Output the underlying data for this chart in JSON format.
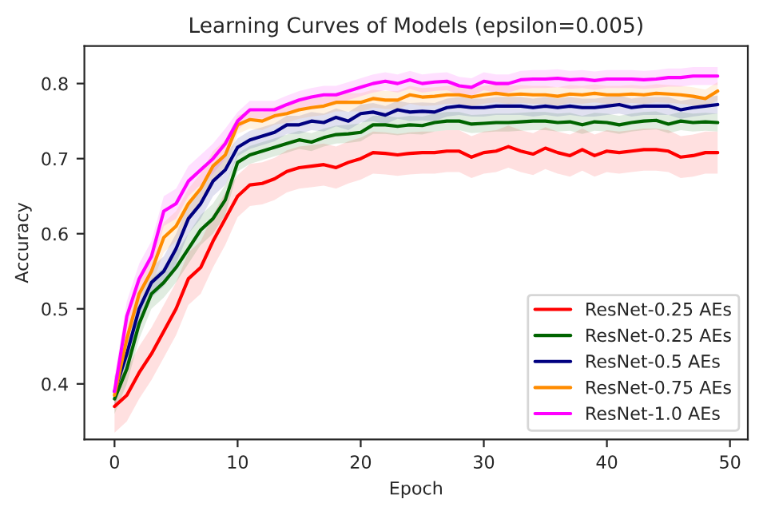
{
  "chart_data": {
    "type": "line",
    "title": "Learning Curves of Models (epsilon=0.005)",
    "xlabel": "Epoch",
    "ylabel": "Accuracy",
    "x": [
      0,
      1,
      2,
      3,
      4,
      5,
      6,
      7,
      8,
      9,
      10,
      11,
      12,
      13,
      14,
      15,
      16,
      17,
      18,
      19,
      20,
      21,
      22,
      23,
      24,
      25,
      26,
      27,
      28,
      29,
      30,
      31,
      32,
      33,
      34,
      35,
      36,
      37,
      38,
      39,
      40,
      41,
      42,
      43,
      44,
      45,
      46,
      47,
      48,
      49
    ],
    "xlim": [
      -2.45,
      51.45
    ],
    "xticks": [
      0,
      10,
      20,
      30,
      40,
      50
    ],
    "ylim": [
      0.326,
      0.85
    ],
    "yticks": [
      0.4,
      0.5,
      0.6,
      0.7,
      0.8
    ],
    "grid": false,
    "legend": "bottom right",
    "line_style": "solid",
    "marker": "none",
    "series": [
      {
        "name": "ResNet-0.25 AEs",
        "color": "#ff0000",
        "values": [
          0.37,
          0.385,
          0.415,
          0.44,
          0.47,
          0.5,
          0.54,
          0.555,
          0.59,
          0.62,
          0.65,
          0.665,
          0.667,
          0.673,
          0.683,
          0.688,
          0.69,
          0.692,
          0.688,
          0.695,
          0.7,
          0.708,
          0.707,
          0.705,
          0.707,
          0.708,
          0.708,
          0.71,
          0.71,
          0.702,
          0.708,
          0.71,
          0.716,
          0.71,
          0.706,
          0.714,
          0.708,
          0.704,
          0.712,
          0.704,
          0.71,
          0.708,
          0.71,
          0.712,
          0.712,
          0.71,
          0.702,
          0.704,
          0.708,
          0.708
        ],
        "lower": [
          0.335,
          0.35,
          0.38,
          0.405,
          0.435,
          0.465,
          0.505,
          0.52,
          0.555,
          0.585,
          0.622,
          0.637,
          0.639,
          0.645,
          0.655,
          0.66,
          0.662,
          0.664,
          0.66,
          0.667,
          0.672,
          0.68,
          0.679,
          0.677,
          0.679,
          0.68,
          0.68,
          0.682,
          0.682,
          0.674,
          0.68,
          0.682,
          0.688,
          0.682,
          0.678,
          0.686,
          0.68,
          0.676,
          0.684,
          0.676,
          0.682,
          0.68,
          0.682,
          0.684,
          0.684,
          0.682,
          0.674,
          0.676,
          0.68,
          0.68
        ],
        "upper": [
          0.405,
          0.42,
          0.45,
          0.475,
          0.505,
          0.535,
          0.575,
          0.59,
          0.625,
          0.655,
          0.678,
          0.693,
          0.695,
          0.701,
          0.711,
          0.716,
          0.718,
          0.72,
          0.716,
          0.723,
          0.728,
          0.736,
          0.735,
          0.733,
          0.735,
          0.736,
          0.736,
          0.738,
          0.738,
          0.73,
          0.736,
          0.738,
          0.744,
          0.738,
          0.734,
          0.742,
          0.736,
          0.732,
          0.74,
          0.732,
          0.738,
          0.736,
          0.738,
          0.74,
          0.74,
          0.738,
          0.73,
          0.732,
          0.736,
          0.736
        ]
      },
      {
        "name": "ResNet-0.25 AEs",
        "color": "#006400",
        "values": [
          0.38,
          0.42,
          0.48,
          0.52,
          0.535,
          0.555,
          0.58,
          0.605,
          0.62,
          0.645,
          0.695,
          0.705,
          0.71,
          0.715,
          0.72,
          0.725,
          0.722,
          0.728,
          0.732,
          0.733,
          0.735,
          0.745,
          0.745,
          0.743,
          0.745,
          0.744,
          0.748,
          0.75,
          0.75,
          0.746,
          0.747,
          0.748,
          0.748,
          0.749,
          0.75,
          0.75,
          0.748,
          0.749,
          0.745,
          0.749,
          0.748,
          0.745,
          0.748,
          0.75,
          0.751,
          0.746,
          0.75,
          0.748,
          0.749,
          0.748
        ],
        "lower": [
          0.36,
          0.4,
          0.46,
          0.5,
          0.515,
          0.535,
          0.56,
          0.585,
          0.6,
          0.625,
          0.683,
          0.693,
          0.698,
          0.703,
          0.708,
          0.713,
          0.71,
          0.716,
          0.72,
          0.721,
          0.723,
          0.733,
          0.733,
          0.731,
          0.733,
          0.732,
          0.736,
          0.738,
          0.738,
          0.734,
          0.735,
          0.736,
          0.736,
          0.737,
          0.738,
          0.738,
          0.736,
          0.737,
          0.733,
          0.737,
          0.736,
          0.733,
          0.736,
          0.738,
          0.739,
          0.734,
          0.738,
          0.736,
          0.737,
          0.736
        ],
        "upper": [
          0.4,
          0.44,
          0.5,
          0.54,
          0.555,
          0.575,
          0.6,
          0.625,
          0.64,
          0.665,
          0.707,
          0.717,
          0.722,
          0.727,
          0.732,
          0.737,
          0.734,
          0.74,
          0.744,
          0.745,
          0.747,
          0.757,
          0.757,
          0.755,
          0.757,
          0.756,
          0.76,
          0.762,
          0.762,
          0.758,
          0.759,
          0.76,
          0.76,
          0.761,
          0.762,
          0.762,
          0.76,
          0.761,
          0.757,
          0.761,
          0.76,
          0.757,
          0.76,
          0.762,
          0.763,
          0.758,
          0.762,
          0.76,
          0.761,
          0.76
        ]
      },
      {
        "name": "ResNet-0.5 AEs",
        "color": "#000080",
        "values": [
          0.39,
          0.44,
          0.5,
          0.535,
          0.55,
          0.58,
          0.62,
          0.64,
          0.67,
          0.685,
          0.715,
          0.725,
          0.73,
          0.735,
          0.745,
          0.745,
          0.75,
          0.748,
          0.755,
          0.75,
          0.76,
          0.762,
          0.758,
          0.765,
          0.762,
          0.763,
          0.762,
          0.768,
          0.77,
          0.768,
          0.768,
          0.77,
          0.77,
          0.77,
          0.768,
          0.77,
          0.768,
          0.77,
          0.768,
          0.768,
          0.77,
          0.772,
          0.768,
          0.77,
          0.77,
          0.77,
          0.765,
          0.768,
          0.77,
          0.772
        ],
        "lower": [
          0.37,
          0.42,
          0.48,
          0.515,
          0.53,
          0.56,
          0.6,
          0.62,
          0.65,
          0.665,
          0.703,
          0.713,
          0.718,
          0.723,
          0.733,
          0.733,
          0.738,
          0.736,
          0.743,
          0.738,
          0.748,
          0.75,
          0.746,
          0.753,
          0.75,
          0.751,
          0.75,
          0.756,
          0.758,
          0.756,
          0.756,
          0.758,
          0.758,
          0.758,
          0.756,
          0.758,
          0.756,
          0.758,
          0.756,
          0.756,
          0.758,
          0.76,
          0.756,
          0.758,
          0.758,
          0.758,
          0.753,
          0.756,
          0.758,
          0.76
        ],
        "upper": [
          0.41,
          0.46,
          0.52,
          0.555,
          0.57,
          0.6,
          0.64,
          0.66,
          0.69,
          0.705,
          0.727,
          0.737,
          0.742,
          0.747,
          0.757,
          0.757,
          0.762,
          0.76,
          0.767,
          0.762,
          0.772,
          0.774,
          0.77,
          0.777,
          0.774,
          0.775,
          0.774,
          0.78,
          0.782,
          0.78,
          0.78,
          0.782,
          0.782,
          0.782,
          0.78,
          0.782,
          0.78,
          0.782,
          0.78,
          0.78,
          0.782,
          0.784,
          0.78,
          0.782,
          0.782,
          0.782,
          0.777,
          0.78,
          0.782,
          0.784
        ]
      },
      {
        "name": "ResNet-0.75 AEs",
        "color": "#ff8c00",
        "values": [
          0.385,
          0.46,
          0.52,
          0.55,
          0.595,
          0.61,
          0.64,
          0.66,
          0.69,
          0.705,
          0.745,
          0.752,
          0.75,
          0.757,
          0.76,
          0.765,
          0.768,
          0.77,
          0.775,
          0.775,
          0.775,
          0.78,
          0.778,
          0.778,
          0.785,
          0.782,
          0.783,
          0.785,
          0.785,
          0.782,
          0.785,
          0.787,
          0.785,
          0.786,
          0.785,
          0.785,
          0.783,
          0.786,
          0.785,
          0.787,
          0.785,
          0.785,
          0.786,
          0.785,
          0.787,
          0.786,
          0.785,
          0.783,
          0.78,
          0.79
        ],
        "lower": [
          0.365,
          0.44,
          0.5,
          0.53,
          0.575,
          0.59,
          0.62,
          0.64,
          0.67,
          0.685,
          0.733,
          0.74,
          0.738,
          0.745,
          0.748,
          0.753,
          0.756,
          0.758,
          0.763,
          0.763,
          0.763,
          0.768,
          0.766,
          0.766,
          0.773,
          0.77,
          0.771,
          0.773,
          0.773,
          0.77,
          0.773,
          0.775,
          0.773,
          0.774,
          0.773,
          0.773,
          0.771,
          0.774,
          0.773,
          0.775,
          0.773,
          0.773,
          0.774,
          0.773,
          0.775,
          0.774,
          0.773,
          0.771,
          0.768,
          0.778
        ],
        "upper": [
          0.405,
          0.48,
          0.54,
          0.57,
          0.615,
          0.63,
          0.66,
          0.68,
          0.71,
          0.725,
          0.757,
          0.764,
          0.762,
          0.769,
          0.772,
          0.777,
          0.78,
          0.782,
          0.787,
          0.787,
          0.787,
          0.792,
          0.79,
          0.79,
          0.797,
          0.794,
          0.795,
          0.797,
          0.797,
          0.794,
          0.797,
          0.799,
          0.797,
          0.798,
          0.797,
          0.797,
          0.795,
          0.798,
          0.797,
          0.799,
          0.797,
          0.797,
          0.798,
          0.797,
          0.799,
          0.798,
          0.797,
          0.795,
          0.792,
          0.802
        ]
      },
      {
        "name": "ResNet-1.0 AEs",
        "color": "#ff00ff",
        "values": [
          0.39,
          0.49,
          0.54,
          0.57,
          0.63,
          0.64,
          0.67,
          0.685,
          0.7,
          0.72,
          0.75,
          0.765,
          0.765,
          0.765,
          0.772,
          0.778,
          0.782,
          0.785,
          0.785,
          0.79,
          0.795,
          0.8,
          0.803,
          0.8,
          0.805,
          0.8,
          0.802,
          0.803,
          0.797,
          0.795,
          0.803,
          0.8,
          0.8,
          0.805,
          0.806,
          0.806,
          0.807,
          0.805,
          0.806,
          0.804,
          0.806,
          0.806,
          0.806,
          0.805,
          0.806,
          0.808,
          0.808,
          0.81,
          0.81,
          0.81
        ],
        "lower": [
          0.37,
          0.47,
          0.52,
          0.55,
          0.61,
          0.62,
          0.65,
          0.665,
          0.68,
          0.7,
          0.738,
          0.753,
          0.753,
          0.753,
          0.76,
          0.766,
          0.77,
          0.773,
          0.773,
          0.778,
          0.783,
          0.788,
          0.791,
          0.788,
          0.793,
          0.788,
          0.79,
          0.791,
          0.785,
          0.783,
          0.791,
          0.788,
          0.788,
          0.793,
          0.794,
          0.794,
          0.795,
          0.793,
          0.794,
          0.792,
          0.794,
          0.794,
          0.794,
          0.793,
          0.794,
          0.796,
          0.796,
          0.798,
          0.798,
          0.798
        ],
        "upper": [
          0.41,
          0.51,
          0.56,
          0.59,
          0.65,
          0.66,
          0.69,
          0.705,
          0.72,
          0.74,
          0.762,
          0.777,
          0.777,
          0.777,
          0.784,
          0.79,
          0.794,
          0.797,
          0.797,
          0.802,
          0.807,
          0.812,
          0.815,
          0.812,
          0.817,
          0.812,
          0.814,
          0.815,
          0.809,
          0.807,
          0.815,
          0.812,
          0.812,
          0.817,
          0.818,
          0.818,
          0.819,
          0.817,
          0.818,
          0.816,
          0.818,
          0.818,
          0.818,
          0.817,
          0.818,
          0.82,
          0.82,
          0.822,
          0.822,
          0.822
        ]
      }
    ]
  }
}
